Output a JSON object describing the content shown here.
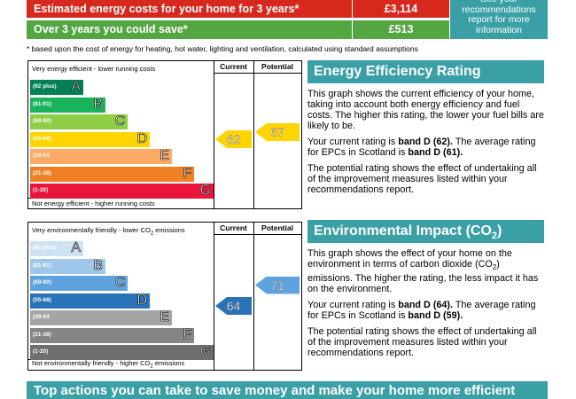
{
  "costs": {
    "row1": {
      "label": "Estimated energy costs for your home for 3 years*",
      "value": "£3,114",
      "color": "#d7281e"
    },
    "row2": {
      "label": "Over 3 years you could save*",
      "value": "£513",
      "color": "#54a643"
    },
    "side_note": "See your recommendations report for more information",
    "footnote": "* based upon the cost of energy for heating, hot water, lighting and ventilation, calculated using standard assumptions"
  },
  "headers": {
    "current": "Current",
    "potential": "Potential"
  },
  "energy_chart": {
    "top_label": "Very energy efficient - lower running costs",
    "bottom_label": "Not energy efficient - higher running costs",
    "bands": [
      {
        "range": "(92 plus)",
        "letter": "A",
        "color": "#008054"
      },
      {
        "range": "(81-91)",
        "letter": "B",
        "color": "#19b459"
      },
      {
        "range": "(69-80)",
        "letter": "C",
        "color": "#8dce46"
      },
      {
        "range": "(55-68)",
        "letter": "D",
        "color": "#ffd500"
      },
      {
        "range": "(39-54",
        "letter": "E",
        "color": "#fcaa65"
      },
      {
        "range": "(21-38)",
        "letter": "F",
        "color": "#ef8023"
      },
      {
        "range": "(1-20)",
        "letter": "G",
        "color": "#e9153b"
      }
    ],
    "current": {
      "value": "62",
      "band": "D",
      "color": "#ffd500"
    },
    "potential": {
      "value": "67",
      "band": "D",
      "color": "#ffd500"
    }
  },
  "eer_panel": {
    "title": "Energy Efficiency Rating",
    "p1": "This graph shows the current efficiency of your home, taking into account both energy efficiency and fuel costs. The higher this rating, the lower your fuel bills are likely to be.",
    "p2_pre": "Your current rating is ",
    "p2_b1": "band D (62).",
    "p2_mid": " The average rating for EPCs in Scotland is ",
    "p2_b2": "band D (61).",
    "p3": "The potential rating shows the effect of undertaking all of the improvement measures listed within your recommendations report."
  },
  "env_chart": {
    "top_label_pre": "Very environmentally friendly - lower CO",
    "top_label_sub": "2",
    "top_label_post": " emissions",
    "bottom_label_pre": "Not environmentally friendly - higher CO",
    "bottom_label_sub": "2",
    "bottom_label_post": " emissions",
    "bands": [
      {
        "range": "(92 plus)",
        "letter": "A",
        "color": "#cfe2f3"
      },
      {
        "range": "(81-91)",
        "letter": "B",
        "color": "#9fc7ea"
      },
      {
        "range": "(69-80)",
        "letter": "C",
        "color": "#5fa3de"
      },
      {
        "range": "(55-68)",
        "letter": "D",
        "color": "#2a72b8"
      },
      {
        "range": "(39-54",
        "letter": "E",
        "color": "#a5a5a5"
      },
      {
        "range": "(21-38)",
        "letter": "F",
        "color": "#858585"
      },
      {
        "range": "(1-20)",
        "letter": "G",
        "color": "#6e6e6e"
      }
    ],
    "current": {
      "value": "64",
      "band": "D",
      "color": "#2a72b8"
    },
    "potential": {
      "value": "71",
      "band": "C",
      "color": "#5fa3de"
    }
  },
  "env_panel": {
    "title_pre": "Environmental Impact (CO",
    "title_sub": "2",
    "title_post": ") Rating",
    "p1_pre": "This graph shows the effect of your home on the environment in terms of carbon dioxide (CO",
    "p1_sub": "2",
    "p1_post": ") emissions. The higher the rating, the less impact it has on the environment.",
    "p2_pre": "Your current rating is ",
    "p2_b1": "band D (64).",
    "p2_mid": " The average rating for EPCs in Scotland is ",
    "p2_b2": "band D (59).",
    "p3": "The potential rating shows the effect of undertaking all of the improvement measures listed within your recommendations report."
  },
  "bottom_title": "Top actions you can take to save money and make your home more efficient"
}
